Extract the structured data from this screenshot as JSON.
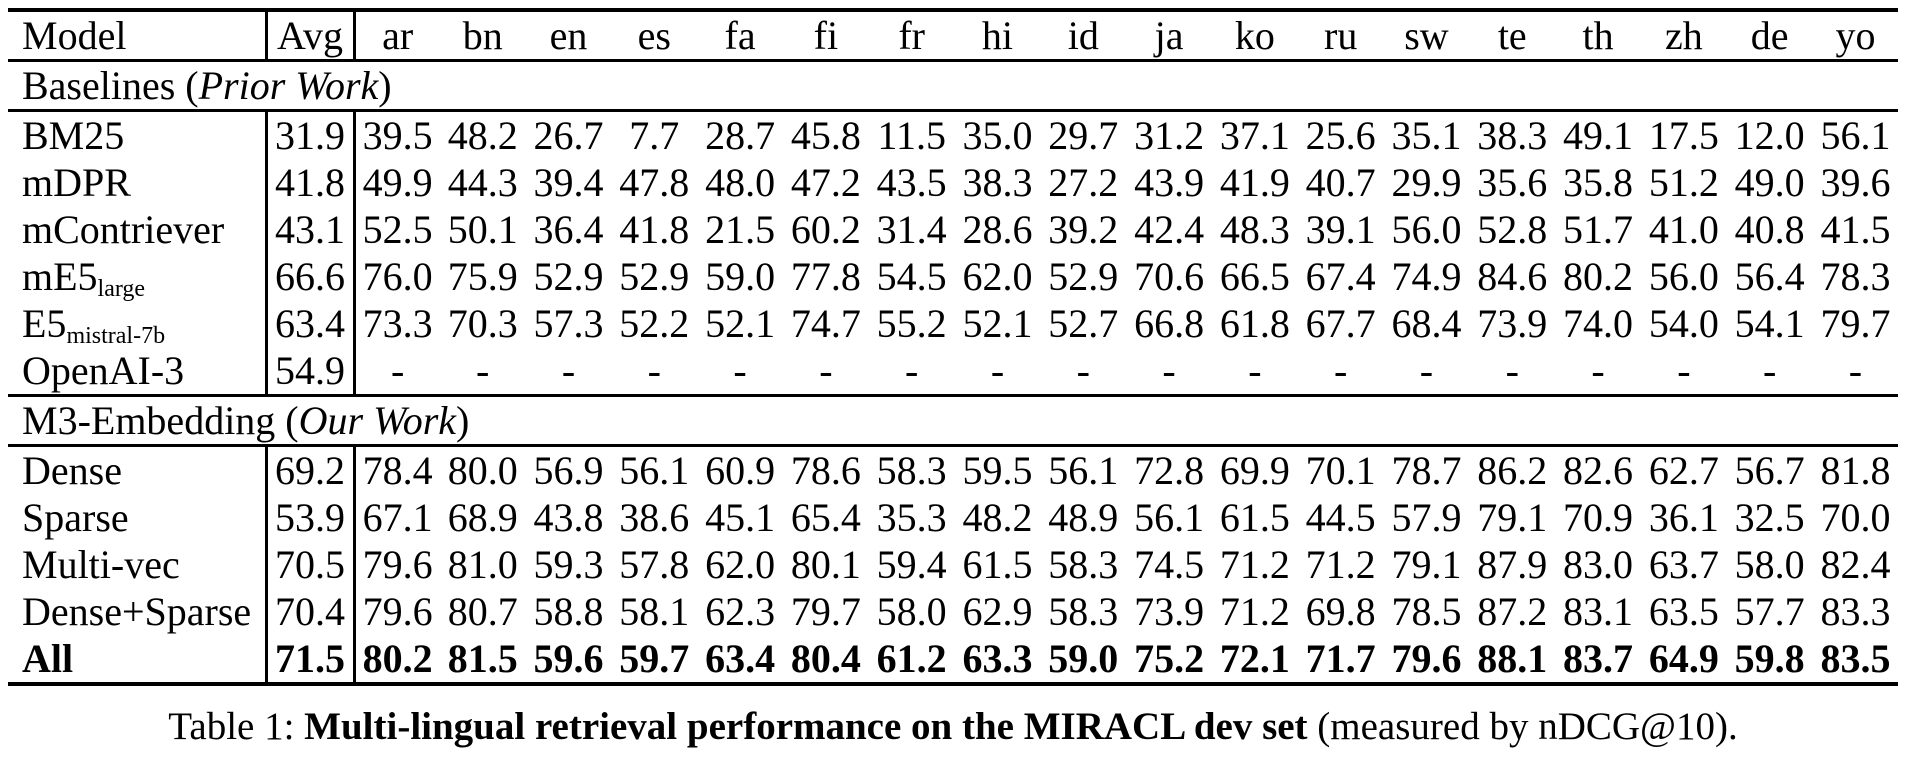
{
  "table": {
    "columns": [
      "Model",
      "Avg",
      "ar",
      "bn",
      "en",
      "es",
      "fa",
      "fi",
      "fr",
      "hi",
      "id",
      "ja",
      "ko",
      "ru",
      "sw",
      "te",
      "th",
      "zh",
      "de",
      "yo"
    ],
    "sections": [
      {
        "header": {
          "prefix": "Baselines (",
          "italic": "Prior Work",
          "suffix": ")"
        },
        "rows": [
          {
            "model": "BM25",
            "values": [
              "31.9",
              "39.5",
              "48.2",
              "26.7",
              "7.7",
              "28.7",
              "45.8",
              "11.5",
              "35.0",
              "29.7",
              "31.2",
              "37.1",
              "25.6",
              "35.1",
              "38.3",
              "49.1",
              "17.5",
              "12.0",
              "56.1"
            ]
          },
          {
            "model": "mDPR",
            "values": [
              "41.8",
              "49.9",
              "44.3",
              "39.4",
              "47.8",
              "48.0",
              "47.2",
              "43.5",
              "38.3",
              "27.2",
              "43.9",
              "41.9",
              "40.7",
              "29.9",
              "35.6",
              "35.8",
              "51.2",
              "49.0",
              "39.6"
            ]
          },
          {
            "model": "mContriever",
            "values": [
              "43.1",
              "52.5",
              "50.1",
              "36.4",
              "41.8",
              "21.5",
              "60.2",
              "31.4",
              "28.6",
              "39.2",
              "42.4",
              "48.3",
              "39.1",
              "56.0",
              "52.8",
              "51.7",
              "41.0",
              "40.8",
              "41.5"
            ]
          },
          {
            "model": "mE5",
            "model_sub": "large",
            "values": [
              "66.6",
              "76.0",
              "75.9",
              "52.9",
              "52.9",
              "59.0",
              "77.8",
              "54.5",
              "62.0",
              "52.9",
              "70.6",
              "66.5",
              "67.4",
              "74.9",
              "84.6",
              "80.2",
              "56.0",
              "56.4",
              "78.3"
            ]
          },
          {
            "model": "E5",
            "model_sub": "mistral-7b",
            "values": [
              "63.4",
              "73.3",
              "70.3",
              "57.3",
              "52.2",
              "52.1",
              "74.7",
              "55.2",
              "52.1",
              "52.7",
              "66.8",
              "61.8",
              "67.7",
              "68.4",
              "73.9",
              "74.0",
              "54.0",
              "54.1",
              "79.7"
            ]
          },
          {
            "model": "OpenAI-3",
            "values": [
              "54.9",
              "-",
              "-",
              "-",
              "-",
              "-",
              "-",
              "-",
              "-",
              "-",
              "-",
              "-",
              "-",
              "-",
              "-",
              "-",
              "-",
              "-",
              "-"
            ]
          }
        ]
      },
      {
        "header": {
          "prefix": "M3-Embedding (",
          "italic": "Our Work",
          "suffix": ")"
        },
        "rows": [
          {
            "model": "Dense",
            "values": [
              "69.2",
              "78.4",
              "80.0",
              "56.9",
              "56.1",
              "60.9",
              "78.6",
              "58.3",
              "59.5",
              "56.1",
              "72.8",
              "69.9",
              "70.1",
              "78.7",
              "86.2",
              "82.6",
              "62.7",
              "56.7",
              "81.8"
            ]
          },
          {
            "model": "Sparse",
            "values": [
              "53.9",
              "67.1",
              "68.9",
              "43.8",
              "38.6",
              "45.1",
              "65.4",
              "35.3",
              "48.2",
              "48.9",
              "56.1",
              "61.5",
              "44.5",
              "57.9",
              "79.1",
              "70.9",
              "36.1",
              "32.5",
              "70.0"
            ]
          },
          {
            "model": "Multi-vec",
            "values": [
              "70.5",
              "79.6",
              "81.0",
              "59.3",
              "57.8",
              "62.0",
              "80.1",
              "59.4",
              "61.5",
              "58.3",
              "74.5",
              "71.2",
              "71.2",
              "79.1",
              "87.9",
              "83.0",
              "63.7",
              "58.0",
              "82.4"
            ]
          },
          {
            "model": "Dense+Sparse",
            "values": [
              "70.4",
              "79.6",
              "80.7",
              "58.8",
              "58.1",
              "62.3",
              "79.7",
              "58.0",
              "62.9",
              "58.3",
              "73.9",
              "71.2",
              "69.8",
              "78.5",
              "87.2",
              "83.1",
              "63.5",
              "57.7",
              "83.3"
            ]
          },
          {
            "model": "All",
            "bold": true,
            "values": [
              "71.5",
              "80.2",
              "81.5",
              "59.6",
              "59.7",
              "63.4",
              "80.4",
              "61.2",
              "63.3",
              "59.0",
              "75.2",
              "72.1",
              "71.7",
              "79.6",
              "88.1",
              "83.7",
              "64.9",
              "59.8",
              "83.5"
            ]
          }
        ]
      }
    ]
  },
  "caption": {
    "prefix": "Table 1: ",
    "bold": "Multi-lingual retrieval performance on the MIRACL dev set",
    "suffix": " (measured by nDCG@10)."
  }
}
